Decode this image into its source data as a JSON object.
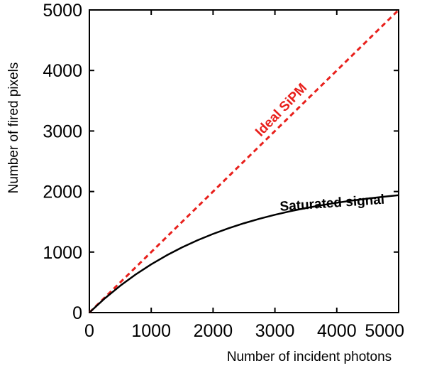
{
  "chart_data": {
    "type": "line",
    "title": "",
    "xlabel": "Number of incident photons",
    "ylabel": "Number of fired pixels",
    "xlim": [
      0,
      5000
    ],
    "ylim": [
      0,
      5000
    ],
    "xticks": [
      0,
      1000,
      2000,
      3000,
      4000,
      5000
    ],
    "yticks": [
      0,
      1000,
      2000,
      3000,
      4000,
      5000
    ],
    "xtick_labels": [
      "0",
      "1000",
      "2000",
      "3000",
      "4000",
      "5000"
    ],
    "ytick_labels": [
      "0",
      "1000",
      "2000",
      "3000",
      "4000",
      "5000"
    ],
    "grid": false,
    "series": [
      {
        "name": "Ideal SiPM",
        "style": "dashed",
        "color": "#e8201c",
        "x": [
          0,
          5000
        ],
        "y": [
          0,
          5000
        ]
      },
      {
        "name": "Saturated signal",
        "style": "solid",
        "color": "#000000",
        "x": [
          0,
          250,
          500,
          750,
          1000,
          1250,
          1500,
          1750,
          2000,
          2250,
          2500,
          2750,
          3000,
          3250,
          3500,
          3750,
          4000,
          4250,
          4500,
          4750,
          5000
        ],
        "y": [
          0,
          235,
          444,
          631,
          797,
          946,
          1078,
          1196,
          1300,
          1393,
          1476,
          1550,
          1616,
          1675,
          1727,
          1773,
          1814,
          1851,
          1884,
          1913,
          1939
        ]
      }
    ],
    "annotations": [
      {
        "text": "Ideal SiPM",
        "x": 3150,
        "y": 3300,
        "color": "#e8201c"
      },
      {
        "text": "Saturated signal",
        "x": 3930,
        "y": 1740,
        "color": "#000000"
      }
    ]
  }
}
